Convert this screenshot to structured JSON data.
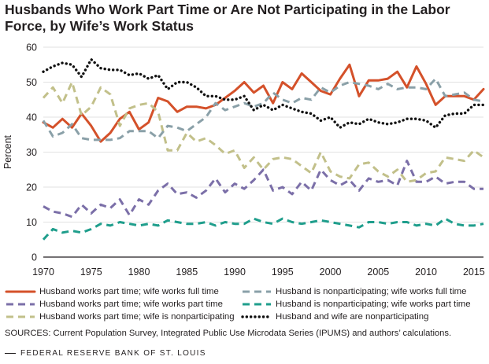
{
  "title": "Husbands Who Work Part Time or Are Not Participating in the Labor Force, by Wife’s Work Status",
  "sources": "SOURCES: Current Population Survey, Integrated Public Use Microdata Series (IPUMS) and authors’ calculations.",
  "footer": "FEDERAL RESERVE BANK OF ST. LOUIS",
  "chart_data": {
    "type": "line",
    "title": "Husbands Who Work Part Time or Are Not Participating in the Labor Force, by Wife’s Work Status",
    "xlabel": "",
    "ylabel": "Percent",
    "xlim": [
      1970,
      2016
    ],
    "ylim": [
      0,
      60
    ],
    "xticks": [
      1970,
      1975,
      1980,
      1985,
      1990,
      1995,
      2000,
      2005,
      2010,
      2015
    ],
    "yticks": [
      0,
      10,
      20,
      30,
      40,
      50,
      60
    ],
    "grid": "horizontal",
    "legend_position": "bottom",
    "x": [
      1970,
      1971,
      1972,
      1973,
      1974,
      1975,
      1976,
      1977,
      1978,
      1979,
      1980,
      1981,
      1982,
      1983,
      1984,
      1985,
      1986,
      1987,
      1988,
      1989,
      1990,
      1991,
      1992,
      1993,
      1994,
      1995,
      1996,
      1997,
      1998,
      1999,
      2000,
      2001,
      2002,
      2003,
      2004,
      2005,
      2006,
      2007,
      2008,
      2009,
      2010,
      2011,
      2012,
      2013,
      2014,
      2015,
      2016
    ],
    "series": [
      {
        "name": "Husband works part time; wife works full time",
        "color": "#d4512a",
        "style": "solid",
        "values": [
          38.5,
          37.0,
          39.5,
          37.0,
          41.0,
          37.5,
          33.0,
          35.5,
          39.5,
          41.5,
          36.5,
          38.5,
          45.5,
          44.5,
          41.5,
          43.0,
          43.0,
          42.5,
          43.5,
          45.5,
          47.5,
          50.0,
          47.0,
          49.0,
          44.0,
          50.0,
          48.0,
          52.5,
          50.0,
          47.5,
          46.5,
          51.0,
          55.0,
          46.0,
          50.5,
          50.5,
          51.0,
          53.0,
          48.5,
          54.5,
          49.5,
          43.5,
          46.0,
          46.0,
          46.0,
          45.0,
          48.0
        ]
      },
      {
        "name": "Husband works part time; wife works part time",
        "color": "#7b6fa8",
        "style": "dash",
        "values": [
          14.5,
          13.0,
          12.5,
          11.5,
          15.0,
          12.5,
          15.0,
          14.0,
          16.5,
          12.0,
          16.5,
          15.0,
          19.0,
          21.0,
          18.0,
          18.5,
          17.0,
          19.0,
          22.5,
          18.5,
          21.0,
          19.5,
          22.0,
          25.0,
          19.0,
          20.0,
          18.0,
          21.5,
          19.0,
          25.0,
          22.0,
          20.5,
          22.0,
          19.0,
          22.5,
          21.5,
          22.0,
          20.5,
          27.5,
          21.5,
          21.5,
          23.0,
          21.0,
          21.5,
          21.5,
          19.5,
          19.5
        ]
      },
      {
        "name": "Husband works part time; wife is nonparticipating",
        "color": "#c2c08a",
        "style": "dash",
        "values": [
          45.5,
          48.5,
          44.0,
          50.0,
          40.5,
          43.0,
          48.5,
          46.5,
          37.5,
          42.5,
          43.5,
          44.0,
          41.5,
          30.5,
          30.5,
          35.5,
          33.0,
          34.0,
          32.0,
          29.5,
          30.5,
          25.5,
          28.5,
          25.0,
          28.0,
          28.5,
          28.0,
          26.0,
          24.0,
          30.0,
          24.5,
          23.0,
          22.5,
          26.5,
          27.0,
          24.5,
          23.0,
          25.0,
          21.5,
          22.0,
          24.0,
          24.5,
          28.5,
          28.0,
          27.5,
          30.5,
          28.5
        ]
      },
      {
        "name": "Husband is nonparticipating; wife works full time",
        "color": "#8aa0a8",
        "style": "dash",
        "values": [
          39.0,
          34.5,
          35.5,
          38.0,
          34.0,
          33.5,
          33.5,
          33.5,
          34.0,
          36.0,
          36.0,
          36.0,
          34.0,
          37.5,
          37.0,
          36.0,
          38.0,
          40.0,
          44.0,
          42.0,
          43.0,
          44.0,
          43.0,
          44.0,
          47.0,
          45.0,
          44.0,
          45.5,
          45.0,
          48.5,
          47.0,
          49.0,
          50.0,
          49.5,
          49.0,
          48.0,
          49.5,
          48.0,
          48.5,
          48.5,
          48.0,
          51.0,
          46.0,
          46.5,
          47.0,
          45.0,
          44.5
        ]
      },
      {
        "name": "Husband is nonparticipating; wife works part time",
        "color": "#1f9e8c",
        "style": "dash",
        "values": [
          5.0,
          8.0,
          7.0,
          7.5,
          7.0,
          8.0,
          9.5,
          9.0,
          10.0,
          9.5,
          9.0,
          9.5,
          9.0,
          10.5,
          10.0,
          9.5,
          9.5,
          10.0,
          9.0,
          10.0,
          9.5,
          9.5,
          11.0,
          10.0,
          9.5,
          11.0,
          10.0,
          9.5,
          10.0,
          10.5,
          10.0,
          9.5,
          9.0,
          8.5,
          10.0,
          10.0,
          9.5,
          10.0,
          10.0,
          9.0,
          9.5,
          9.0,
          11.0,
          9.5,
          9.0,
          9.0,
          9.5
        ]
      },
      {
        "name": "Husband and wife are nonparticipating",
        "color": "#111111",
        "style": "dot",
        "values": [
          53.0,
          54.5,
          55.5,
          55.0,
          51.5,
          56.5,
          54.0,
          53.5,
          53.5,
          52.0,
          52.5,
          51.0,
          52.0,
          48.0,
          50.0,
          50.0,
          48.5,
          46.0,
          46.0,
          45.0,
          45.0,
          46.0,
          42.0,
          43.5,
          42.0,
          43.5,
          42.5,
          41.5,
          41.0,
          39.0,
          40.0,
          37.0,
          38.5,
          38.0,
          39.5,
          38.5,
          38.0,
          38.5,
          39.5,
          39.5,
          39.0,
          37.0,
          40.5,
          41.0,
          41.0,
          43.5,
          43.5
        ]
      }
    ]
  }
}
